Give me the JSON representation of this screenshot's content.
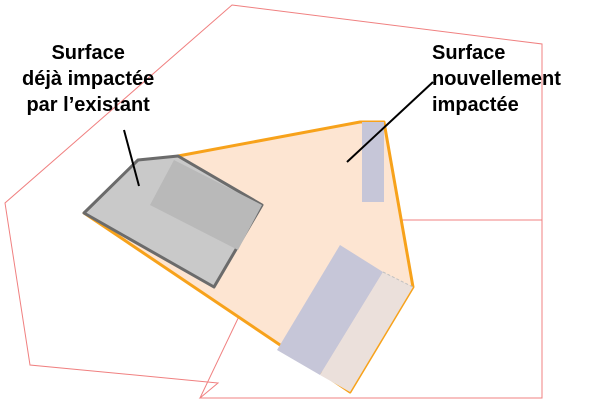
{
  "labels": {
    "existing": [
      "Surface",
      "déjà impactée",
      "par l’existant"
    ],
    "new": [
      "Surface",
      "nouvellement",
      "impactée"
    ]
  },
  "colors": {
    "parcel_outline": "#f08080",
    "new_fill": "#fde5d2",
    "new_outline": "#f7a21b",
    "existing_fill": "#c9c9c9",
    "existing_outline": "#6b6b6b",
    "existing_building": "#b9b9b9",
    "building_fill": "#c6c6d8",
    "pale_building": "#ebe0db"
  }
}
